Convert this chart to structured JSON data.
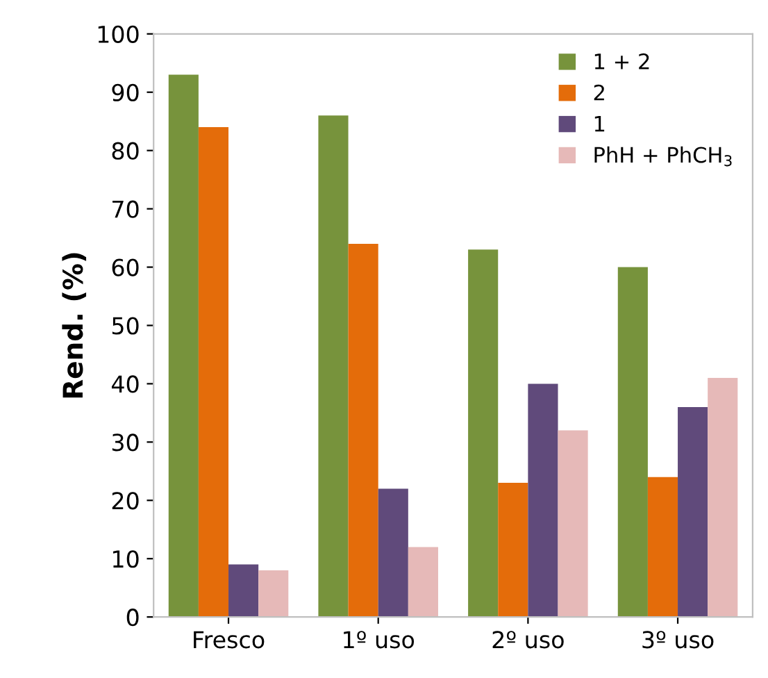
{
  "chart_data": {
    "type": "bar",
    "ylabel": "Rend. (%)",
    "categories": [
      "Fresco",
      "1º uso",
      "2º uso",
      "3º uso"
    ],
    "series": [
      {
        "name": "1 + 2",
        "color": "#77933c",
        "values": [
          93,
          86,
          63,
          60
        ]
      },
      {
        "name": "2",
        "color": "#e46c0a",
        "values": [
          84,
          64,
          23,
          24
        ]
      },
      {
        "name": "1",
        "color": "#604a7b",
        "values": [
          9,
          22,
          40,
          36
        ]
      },
      {
        "name": "PhH + PhCH$_{3}$",
        "color": "#e6b9b8",
        "values": [
          8,
          12,
          32,
          41
        ]
      }
    ],
    "ylim": [
      0,
      100
    ],
    "yticks": [
      0,
      10,
      20,
      30,
      40,
      50,
      60,
      70,
      80,
      90,
      100
    ],
    "grid": false,
    "legend": "top right"
  }
}
